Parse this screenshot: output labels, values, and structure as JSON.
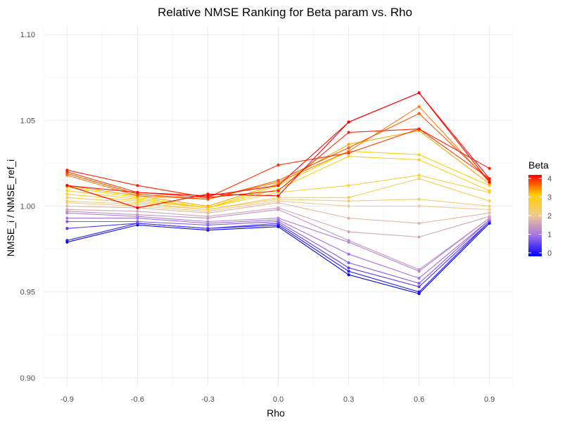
{
  "chart_data": {
    "type": "line",
    "title": "Relative NMSE Ranking for Beta param vs. Rho",
    "xlabel": "Rho",
    "ylabel": "NMSE_i / NMSE_ref_i",
    "x": [
      -0.9,
      -0.6,
      -0.3,
      0.0,
      0.3,
      0.6,
      0.9
    ],
    "x_tick_labels": [
      "-0.9",
      "-0.6",
      "-0.3",
      "0.0",
      "0.3",
      "0.6",
      "0.9"
    ],
    "xlim": [
      -1.0,
      1.0
    ],
    "ylim": [
      0.895,
      1.105
    ],
    "y_ticks": [
      0.9,
      0.95,
      1.0,
      1.05,
      1.1
    ],
    "y_tick_labels": [
      "0.90",
      "0.95",
      "1.00",
      "1.05",
      "1.10"
    ],
    "grid": true,
    "legend": {
      "title": "Beta",
      "type": "colorbar",
      "position": "right",
      "range": [
        0,
        4
      ],
      "ticks": [
        0,
        1,
        2,
        3,
        4
      ],
      "tick_labels": [
        "0",
        "1",
        "2",
        "3",
        "4"
      ],
      "colors": [
        "#0000ff",
        "#a070e8",
        "#f0c890",
        "#ffd000",
        "#ff0000"
      ]
    },
    "series": [
      {
        "beta": 0.0,
        "values": [
          0.979,
          0.989,
          0.986,
          0.988,
          0.96,
          0.949,
          0.99
        ]
      },
      {
        "beta": 0.2,
        "values": [
          0.98,
          0.99,
          0.987,
          0.989,
          0.962,
          0.95,
          0.991
        ]
      },
      {
        "beta": 0.5,
        "values": [
          0.987,
          0.99,
          0.987,
          0.99,
          0.964,
          0.953,
          0.991
        ]
      },
      {
        "beta": 0.8,
        "values": [
          0.991,
          0.991,
          0.989,
          0.991,
          0.967,
          0.955,
          0.992
        ]
      },
      {
        "beta": 1.0,
        "values": [
          0.993,
          0.993,
          0.99,
          0.992,
          0.972,
          0.958,
          0.992
        ]
      },
      {
        "beta": 1.2,
        "values": [
          0.996,
          0.994,
          0.991,
          0.993,
          0.979,
          0.962,
          0.993
        ]
      },
      {
        "beta": 1.4,
        "values": [
          0.997,
          0.995,
          0.993,
          0.998,
          0.98,
          0.963,
          0.993
        ]
      },
      {
        "beta": 1.6,
        "values": [
          0.998,
          0.997,
          0.994,
          0.999,
          0.985,
          0.982,
          0.994
        ]
      },
      {
        "beta": 1.8,
        "values": [
          1.0,
          0.999,
          0.996,
          1.002,
          0.993,
          0.99,
          0.996
        ]
      },
      {
        "beta": 2.0,
        "values": [
          1.002,
          1.0,
          0.997,
          1.003,
          1.0,
          1.0,
          0.998
        ]
      },
      {
        "beta": 2.2,
        "values": [
          1.003,
          1.001,
          0.998,
          1.004,
          1.003,
          1.004,
          1.0
        ]
      },
      {
        "beta": 2.4,
        "values": [
          1.005,
          1.002,
          0.998,
          1.005,
          1.005,
          1.016,
          1.003
        ]
      },
      {
        "beta": 2.6,
        "values": [
          1.007,
          1.003,
          0.999,
          1.008,
          1.012,
          1.018,
          1.008
        ]
      },
      {
        "beta": 2.8,
        "values": [
          1.009,
          1.004,
          0.999,
          1.01,
          1.029,
          1.027,
          1.009
        ]
      },
      {
        "beta": 3.0,
        "values": [
          1.011,
          1.005,
          0.999,
          1.012,
          1.032,
          1.03,
          1.012
        ]
      },
      {
        "beta": 3.2,
        "values": [
          1.012,
          1.006,
          1.0,
          1.013,
          1.036,
          1.044,
          1.013
        ]
      },
      {
        "beta": 3.4,
        "values": [
          1.018,
          1.006,
          1.004,
          1.014,
          1.032,
          1.058,
          1.014
        ]
      },
      {
        "beta": 3.6,
        "values": [
          1.019,
          1.007,
          1.004,
          1.015,
          1.034,
          1.054,
          1.015
        ]
      },
      {
        "beta": 3.75,
        "values": [
          1.02,
          1.008,
          1.005,
          1.024,
          1.031,
          1.045,
          1.016
        ]
      },
      {
        "beta": 3.85,
        "values": [
          1.021,
          1.012,
          1.005,
          1.009,
          1.043,
          1.045,
          1.022
        ]
      },
      {
        "beta": 3.95,
        "values": [
          1.012,
          1.008,
          1.006,
          1.012,
          1.049,
          1.066,
          1.016
        ]
      },
      {
        "beta": 4.0,
        "values": [
          1.012,
          0.999,
          1.007,
          1.006,
          1.049,
          1.066,
          1.014
        ]
      }
    ]
  }
}
